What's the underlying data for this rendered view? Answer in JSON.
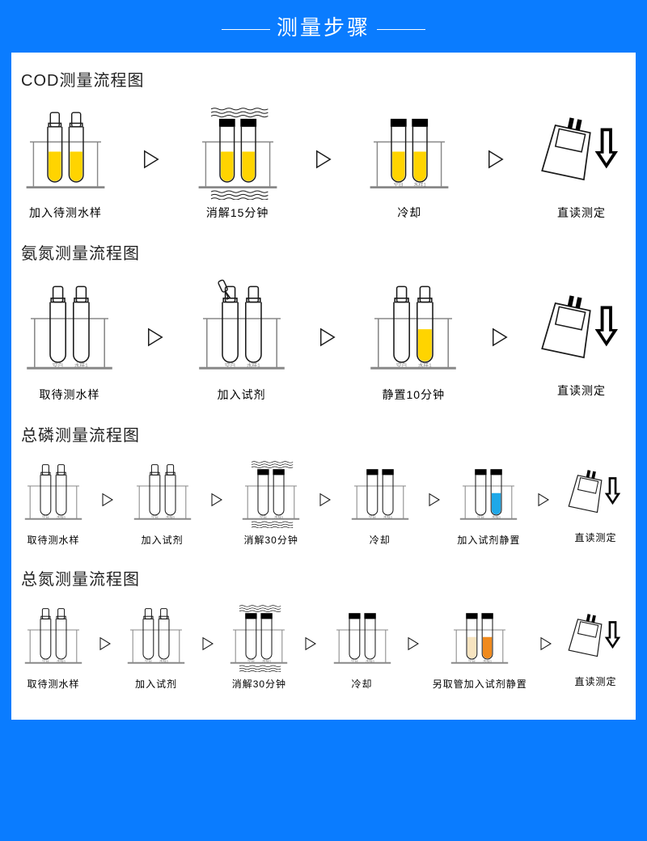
{
  "header_title": "测量步骤",
  "colors": {
    "bg": "#0a7cff",
    "stroke": "#1a1a1a",
    "gray": "#888",
    "yellow": "#ffd400",
    "blue": "#1fa8e8",
    "tan": "#f7e4c0",
    "orange": "#f08a1d"
  },
  "font": {
    "section_title": 20,
    "step_large": 14,
    "step_small": 12
  },
  "labels": {
    "blank": "空白",
    "sample": "水样1"
  },
  "sections": [
    {
      "title": "COD测量流程图",
      "small": false,
      "steps": [
        {
          "label": "加入待测水样",
          "type": "rack",
          "caps": "none",
          "fill1": "#ffd400",
          "fill2": "#ffd400",
          "lv": 0.55,
          "heat": false,
          "labels": false,
          "scale": 1.1
        },
        {
          "label": "消解15分钟",
          "type": "rack",
          "caps": "black",
          "fill1": "#ffd400",
          "fill2": "#ffd400",
          "lv": 0.55,
          "heat": true,
          "labels": false,
          "scale": 1.1
        },
        {
          "label": "冷却",
          "type": "rack",
          "caps": "black",
          "fill1": "#ffd400",
          "fill2": "#ffd400",
          "lv": 0.55,
          "heat": false,
          "labels": true,
          "scale": 1.1
        },
        {
          "label": "直读测定",
          "type": "meter",
          "scale": 1.1
        }
      ]
    },
    {
      "title": "氨氮测量流程图",
      "small": false,
      "steps": [
        {
          "label": "取待测水样",
          "type": "rack",
          "caps": "none",
          "fill1": "none",
          "fill2": "none",
          "lv": 0.55,
          "heat": false,
          "labels": true,
          "scale": 1.2
        },
        {
          "label": "加入试剂",
          "type": "rack",
          "caps": "none",
          "fill1": "none",
          "fill2": "none",
          "lv": 0.55,
          "heat": false,
          "labels": true,
          "dropper": true,
          "scale": 1.2
        },
        {
          "label": "静置10分钟",
          "type": "rack",
          "caps": "none",
          "fill1": "none",
          "fill2": "#ffd400",
          "lv": 0.55,
          "heat": false,
          "labels": true,
          "scale": 1.2
        },
        {
          "label": "直读测定",
          "type": "meter",
          "scale": 1.1
        }
      ]
    },
    {
      "title": "总磷测量流程图",
      "small": true,
      "steps": [
        {
          "label": "取待测水样",
          "type": "rack",
          "caps": "none",
          "fill1": "none",
          "fill2": "none",
          "lv": 0.55,
          "labels": true,
          "scale": 0.8
        },
        {
          "label": "加入试剂",
          "type": "rack",
          "caps": "none",
          "fill1": "none",
          "fill2": "none",
          "lv": 0.55,
          "labels": true,
          "scale": 0.8
        },
        {
          "label": "消解30分钟",
          "type": "rack",
          "caps": "black",
          "fill1": "none",
          "fill2": "none",
          "lv": 0.55,
          "heat": true,
          "labels": true,
          "scale": 0.8
        },
        {
          "label": "冷却",
          "type": "rack",
          "caps": "black",
          "fill1": "none",
          "fill2": "none",
          "lv": 0.55,
          "labels": true,
          "scale": 0.8
        },
        {
          "label": "加入试剂静置",
          "type": "rack",
          "caps": "black",
          "fill1": "none",
          "fill2": "#1fa8e8",
          "lv": 0.55,
          "labels": true,
          "scale": 0.8
        },
        {
          "label": "直读测定",
          "type": "meter",
          "scale": 0.75
        }
      ]
    },
    {
      "title": "总氮测量流程图",
      "small": true,
      "steps": [
        {
          "label": "取待测水样",
          "type": "rack",
          "caps": "none",
          "fill1": "none",
          "fill2": "none",
          "lv": 0.55,
          "labels": true,
          "scale": 0.8
        },
        {
          "label": "加入试剂",
          "type": "rack",
          "caps": "none",
          "fill1": "none",
          "fill2": "none",
          "lv": 0.55,
          "labels": true,
          "scale": 0.8
        },
        {
          "label": "消解30分钟",
          "type": "rack",
          "caps": "black",
          "fill1": "none",
          "fill2": "none",
          "lv": 0.55,
          "heat": true,
          "labels": true,
          "scale": 0.8
        },
        {
          "label": "冷却",
          "type": "rack",
          "caps": "black",
          "fill1": "none",
          "fill2": "none",
          "lv": 0.55,
          "labels": true,
          "scale": 0.8
        },
        {
          "label": "另取管加入试剂静置",
          "type": "rack",
          "caps": "black",
          "fill1": "#f7e4c0",
          "fill2": "#f08a1d",
          "lv": 0.55,
          "labels": true,
          "scale": 0.8
        },
        {
          "label": "直读测定",
          "type": "meter",
          "scale": 0.75
        }
      ]
    }
  ]
}
